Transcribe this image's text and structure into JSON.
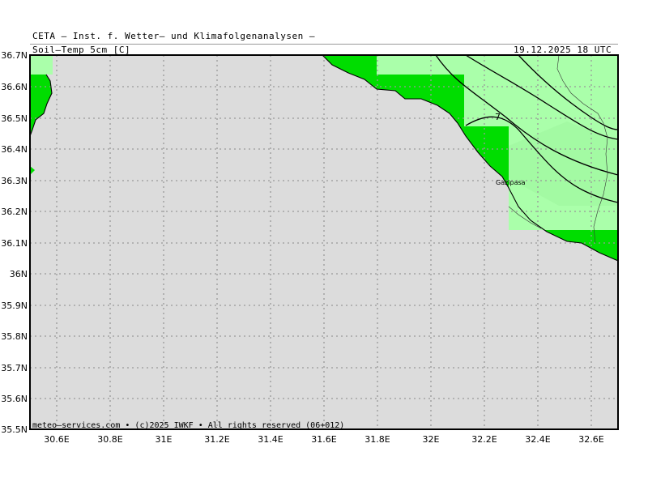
{
  "header": {
    "title": "CETA – Inst. f. Wetter– und Klimafolgenanalysen –",
    "parameter": "Soil–Temp_5cm_[C]",
    "valid_time": "19.12.2025 18 UTC"
  },
  "map": {
    "lat_labels": [
      "36.7N",
      "36.6N",
      "36.5N",
      "36.4N",
      "36.3N",
      "36.2N",
      "36.1N",
      "36N",
      "35.9N",
      "35.8N",
      "35.7N",
      "35.6N",
      "35.5N"
    ],
    "lon_labels": [
      "30.6E",
      "30.8E",
      "31E",
      "31.2E",
      "31.4E",
      "31.6E",
      "31.8E",
      "32E",
      "32.2E",
      "32.4E",
      "32.6E"
    ],
    "contour_label": "7",
    "city_label": "Gazipasa",
    "footer": "meteo–services.com • (c)2025 IWKF • All rights reserved (06+012)",
    "colors": {
      "sea": "#dcdcdc",
      "land_bright": "#00dd00",
      "land_light": "#aaffaa",
      "land_mid": "#88ee88",
      "grid": "#999999"
    }
  }
}
